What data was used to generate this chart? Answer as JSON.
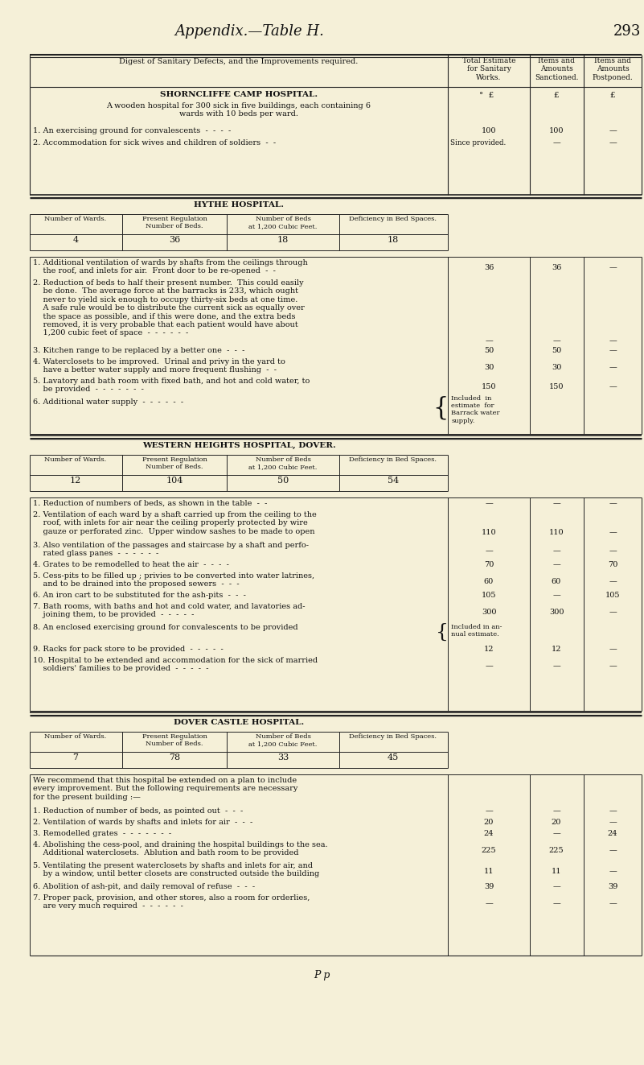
{
  "bg_color": "#f5f0d8",
  "title": "Appendix.—Table H.",
  "page_num": "293",
  "footer": "P p"
}
